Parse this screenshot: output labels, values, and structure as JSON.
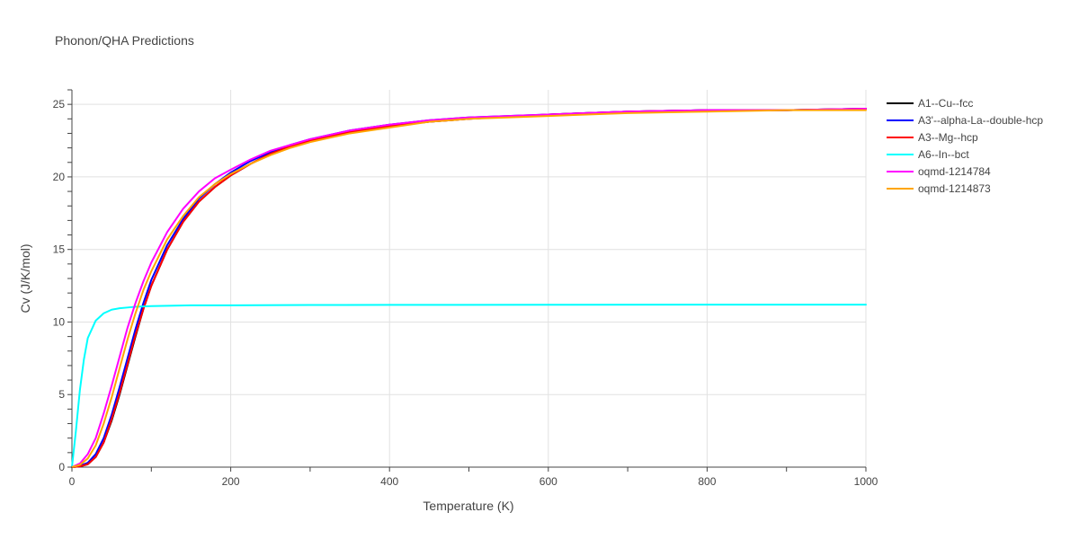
{
  "chart_data": {
    "type": "line",
    "title": "Phonon/QHA Predictions",
    "xlabel": "Temperature (K)",
    "ylabel": "Cv (J/K/mol)",
    "xlim": [
      0,
      1000
    ],
    "ylim": [
      0,
      26
    ],
    "x_ticks": [
      0,
      200,
      400,
      600,
      800,
      1000
    ],
    "y_ticks": [
      0,
      5,
      10,
      15,
      20,
      25
    ],
    "x_tick_labels": [
      "0",
      "200",
      "400",
      "600",
      "800",
      "1000"
    ],
    "y_tick_labels": [
      "0",
      "5",
      "10",
      "15",
      "20",
      "25"
    ],
    "grid": true,
    "legend_position": "right",
    "series": [
      {
        "name": "A1--Cu--fcc",
        "color": "#000000",
        "x": [
          0,
          10,
          20,
          30,
          40,
          50,
          60,
          70,
          80,
          90,
          100,
          120,
          140,
          160,
          180,
          200,
          225,
          250,
          275,
          300,
          350,
          400,
          450,
          500,
          600,
          700,
          800,
          900,
          1000
        ],
        "y": [
          0,
          0.05,
          0.2,
          0.7,
          1.7,
          3.2,
          5.0,
          7.0,
          9.0,
          10.9,
          12.5,
          15.0,
          16.9,
          18.3,
          19.3,
          20.1,
          20.9,
          21.6,
          22.1,
          22.5,
          23.1,
          23.5,
          23.8,
          24.0,
          24.3,
          24.5,
          24.6,
          24.6,
          24.7
        ]
      },
      {
        "name": "A3'--alpha-La--double-hcp",
        "color": "#0000ff",
        "x": [
          0,
          10,
          20,
          30,
          40,
          50,
          60,
          70,
          80,
          90,
          100,
          120,
          140,
          160,
          180,
          200,
          225,
          250,
          275,
          300,
          350,
          400,
          450,
          500,
          600,
          700,
          800,
          900,
          1000
        ],
        "y": [
          0,
          0.1,
          0.3,
          0.9,
          2.0,
          3.6,
          5.5,
          7.5,
          9.5,
          11.3,
          12.9,
          15.3,
          17.1,
          18.5,
          19.5,
          20.3,
          21.1,
          21.7,
          22.2,
          22.6,
          23.2,
          23.6,
          23.9,
          24.1,
          24.3,
          24.5,
          24.6,
          24.6,
          24.7
        ]
      },
      {
        "name": "A3--Mg--hcp",
        "color": "#ff0000",
        "x": [
          0,
          10,
          20,
          30,
          40,
          50,
          60,
          70,
          80,
          90,
          100,
          120,
          140,
          160,
          180,
          200,
          225,
          250,
          275,
          300,
          350,
          400,
          450,
          500,
          600,
          700,
          800,
          900,
          1000
        ],
        "y": [
          0,
          0.05,
          0.2,
          0.7,
          1.7,
          3.3,
          5.1,
          7.1,
          9.1,
          10.9,
          12.5,
          15.0,
          16.9,
          18.3,
          19.3,
          20.1,
          20.9,
          21.6,
          22.1,
          22.5,
          23.1,
          23.5,
          23.8,
          24.0,
          24.3,
          24.5,
          24.6,
          24.6,
          24.7
        ]
      },
      {
        "name": "A6--In--bct",
        "color": "#00ffff",
        "x": [
          0,
          5,
          10,
          15,
          20,
          30,
          40,
          50,
          60,
          70,
          80,
          100,
          150,
          200,
          300,
          400,
          600,
          800,
          1000
        ],
        "y": [
          0,
          2.5,
          5.3,
          7.4,
          8.9,
          10.1,
          10.6,
          10.85,
          10.95,
          11.0,
          11.05,
          11.1,
          11.15,
          11.15,
          11.17,
          11.18,
          11.19,
          11.2,
          11.2
        ]
      },
      {
        "name": "oqmd-1214784",
        "color": "#ff00ff",
        "x": [
          0,
          10,
          20,
          30,
          40,
          50,
          60,
          70,
          80,
          90,
          100,
          120,
          140,
          160,
          180,
          200,
          225,
          250,
          275,
          300,
          350,
          400,
          450,
          500,
          600,
          700,
          800,
          900,
          1000
        ],
        "y": [
          0,
          0.25,
          0.9,
          2.0,
          3.7,
          5.6,
          7.6,
          9.6,
          11.3,
          12.8,
          14.1,
          16.2,
          17.8,
          19.0,
          19.9,
          20.5,
          21.2,
          21.8,
          22.2,
          22.6,
          23.2,
          23.6,
          23.9,
          24.1,
          24.3,
          24.5,
          24.6,
          24.6,
          24.7
        ]
      },
      {
        "name": "oqmd-1214873",
        "color": "#ffa500",
        "x": [
          0,
          10,
          20,
          30,
          40,
          50,
          60,
          70,
          80,
          90,
          100,
          120,
          140,
          160,
          180,
          200,
          225,
          250,
          275,
          300,
          350,
          400,
          450,
          500,
          600,
          700,
          800,
          900,
          1000
        ],
        "y": [
          0,
          0.15,
          0.6,
          1.5,
          3.0,
          4.8,
          6.8,
          8.8,
          10.6,
          12.2,
          13.5,
          15.7,
          17.3,
          18.6,
          19.5,
          20.2,
          20.9,
          21.5,
          22.0,
          22.4,
          23.0,
          23.4,
          23.8,
          24.0,
          24.2,
          24.4,
          24.5,
          24.6,
          24.6
        ]
      }
    ]
  }
}
